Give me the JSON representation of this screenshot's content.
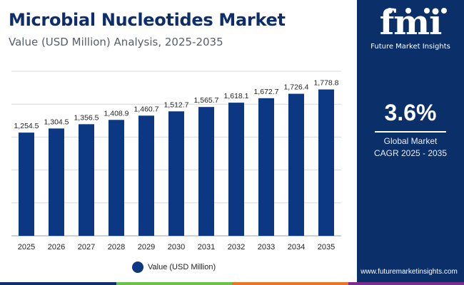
{
  "header": {
    "title": "Microbial Nucleotides Market",
    "subtitle": "Value (USD Million) Analysis, 2025-2035"
  },
  "chart_data": {
    "type": "bar",
    "categories": [
      "2025",
      "2026",
      "2027",
      "2028",
      "2029",
      "2030",
      "2031",
      "2032",
      "2033",
      "2034",
      "2035"
    ],
    "series": [
      {
        "name": "Value (USD Million)",
        "values": [
          1254.5,
          1304.5,
          1356.5,
          1408.9,
          1460.7,
          1512.7,
          1565.7,
          1618.1,
          1672.7,
          1726.4,
          1778.8
        ],
        "labels": [
          "1,254.5",
          "1,304.5",
          "1,356.5",
          "1,408.9",
          "1,460.7",
          "1,512.7",
          "1,565.7",
          "1,618.1",
          "1,672.7",
          "1,726.4",
          "1,778.8"
        ]
      }
    ],
    "ylim": [
      0,
      2000
    ],
    "grid": true,
    "legend": "bottom-center",
    "bar_color": "#0c3883"
  },
  "legend": {
    "label": "Value (USD Million)"
  },
  "sidebar": {
    "logo_mark": "fmi",
    "logo_text": "Future Market Insights",
    "cagr_value": "3.6%",
    "cagr_label_1": "Global Market",
    "cagr_label_2": "CAGR 2025 - 2035",
    "website": "www.futuremarketinsights.com"
  },
  "colors": {
    "panel": "#0b2f69",
    "title": "#0d2d6b",
    "stripe": [
      "#0d2d6b",
      "#6cc04a",
      "#e8742c",
      "#7a2c8f"
    ]
  }
}
